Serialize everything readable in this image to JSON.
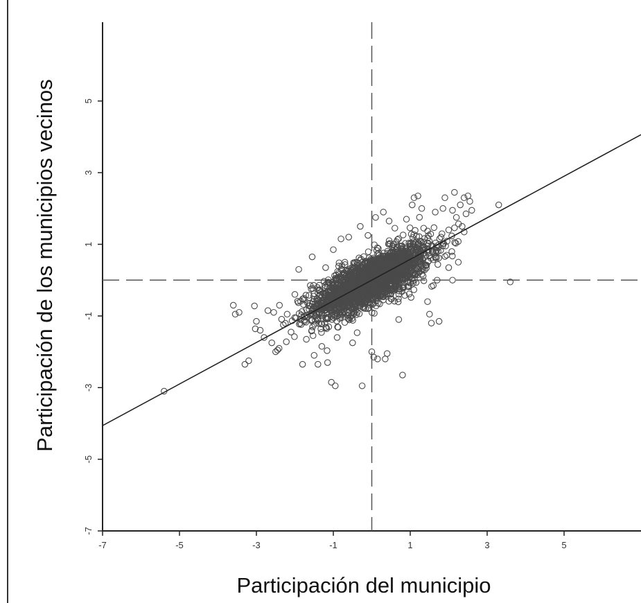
{
  "chart_data": {
    "type": "scatter",
    "title": "",
    "xlabel": "Participación del municipio",
    "ylabel": "Participación de los municipios vecinos",
    "xlim": [
      -7,
      7
    ],
    "ylim": [
      -7,
      7.2
    ],
    "x_ticks": [
      -7,
      -5,
      -3,
      -1,
      1,
      3,
      5
    ],
    "y_ticks": [
      -7,
      -5,
      -3,
      -1,
      1,
      3,
      5
    ],
    "grid": false,
    "legend": "none",
    "reference_lines": {
      "vertical_x": 0,
      "horizontal_y": 0,
      "style": "dashed"
    },
    "regression_line": {
      "slope": 0.58,
      "intercept": 0,
      "x_range": [
        -7,
        7
      ]
    },
    "cluster": {
      "count": 2300,
      "mean_x": 0,
      "mean_y": 0,
      "sd_x": 0.75,
      "sd_y": 0.5,
      "correlation": 0.75
    },
    "points": [
      [
        -3.6,
        -0.7
      ],
      [
        -3.55,
        -0.95
      ],
      [
        -3.45,
        -0.9
      ],
      [
        -3.3,
        -2.35
      ],
      [
        -3.2,
        -2.25
      ],
      [
        -3.05,
        -0.72
      ],
      [
        -3.0,
        -1.15
      ],
      [
        -2.9,
        -1.4
      ],
      [
        -2.8,
        -1.6
      ],
      [
        -2.7,
        -0.85
      ],
      [
        -2.6,
        -1.75
      ],
      [
        -2.55,
        -0.9
      ],
      [
        -2.5,
        -2.0
      ],
      [
        -2.45,
        -1.95
      ],
      [
        -2.4,
        -0.7
      ],
      [
        -2.3,
        -1.25
      ],
      [
        -2.2,
        -0.95
      ],
      [
        -2.1,
        -1.45
      ],
      [
        -2.0,
        -0.4
      ],
      [
        -1.9,
        0.3
      ],
      [
        -1.85,
        -1.1
      ],
      [
        -1.8,
        -2.35
      ],
      [
        -1.7,
        -1.65
      ],
      [
        -1.6,
        -0.15
      ],
      [
        -1.55,
        0.65
      ],
      [
        -1.5,
        -2.1
      ],
      [
        -1.4,
        -2.35
      ],
      [
        -1.3,
        -1.85
      ],
      [
        -1.2,
        0.35
      ],
      [
        -1.15,
        -2.3
      ],
      [
        -1.05,
        -2.85
      ],
      [
        -1.0,
        0.85
      ],
      [
        -0.95,
        -2.95
      ],
      [
        -0.9,
        -1.6
      ],
      [
        -0.8,
        1.15
      ],
      [
        -0.7,
        0.5
      ],
      [
        -0.6,
        1.2
      ],
      [
        -0.5,
        -1.75
      ],
      [
        -0.3,
        1.5
      ],
      [
        -0.25,
        -2.95
      ],
      [
        -0.1,
        1.25
      ],
      [
        0.0,
        -2.0
      ],
      [
        0.05,
        -2.15
      ],
      [
        0.1,
        1.75
      ],
      [
        0.15,
        -2.2
      ],
      [
        0.3,
        1.9
      ],
      [
        0.35,
        -2.2
      ],
      [
        0.4,
        -2.05
      ],
      [
        0.45,
        1.65
      ],
      [
        0.6,
        1.45
      ],
      [
        0.7,
        -1.1
      ],
      [
        0.8,
        -2.65
      ],
      [
        0.9,
        1.7
      ],
      [
        1.05,
        2.1
      ],
      [
        1.1,
        2.3
      ],
      [
        1.2,
        2.35
      ],
      [
        1.3,
        2.0
      ],
      [
        1.35,
        1.45
      ],
      [
        1.45,
        -0.6
      ],
      [
        1.5,
        -0.95
      ],
      [
        1.55,
        -1.2
      ],
      [
        1.6,
        -0.15
      ],
      [
        1.65,
        1.9
      ],
      [
        1.7,
        0.0
      ],
      [
        1.75,
        -1.15
      ],
      [
        1.8,
        1.2
      ],
      [
        1.85,
        2.0
      ],
      [
        1.9,
        2.3
      ],
      [
        2.0,
        0.35
      ],
      [
        2.0,
        1.4
      ],
      [
        2.1,
        1.95
      ],
      [
        2.15,
        2.45
      ],
      [
        2.2,
        1.75
      ],
      [
        2.25,
        0.5
      ],
      [
        2.3,
        2.1
      ],
      [
        2.35,
        1.5
      ],
      [
        2.4,
        2.3
      ],
      [
        2.45,
        1.85
      ],
      [
        2.5,
        2.35
      ],
      [
        2.55,
        2.2
      ],
      [
        2.6,
        1.95
      ],
      [
        2.1,
        0.0
      ],
      [
        3.3,
        2.1
      ],
      [
        3.6,
        -0.05
      ],
      [
        -5.4,
        -3.1
      ]
    ]
  }
}
